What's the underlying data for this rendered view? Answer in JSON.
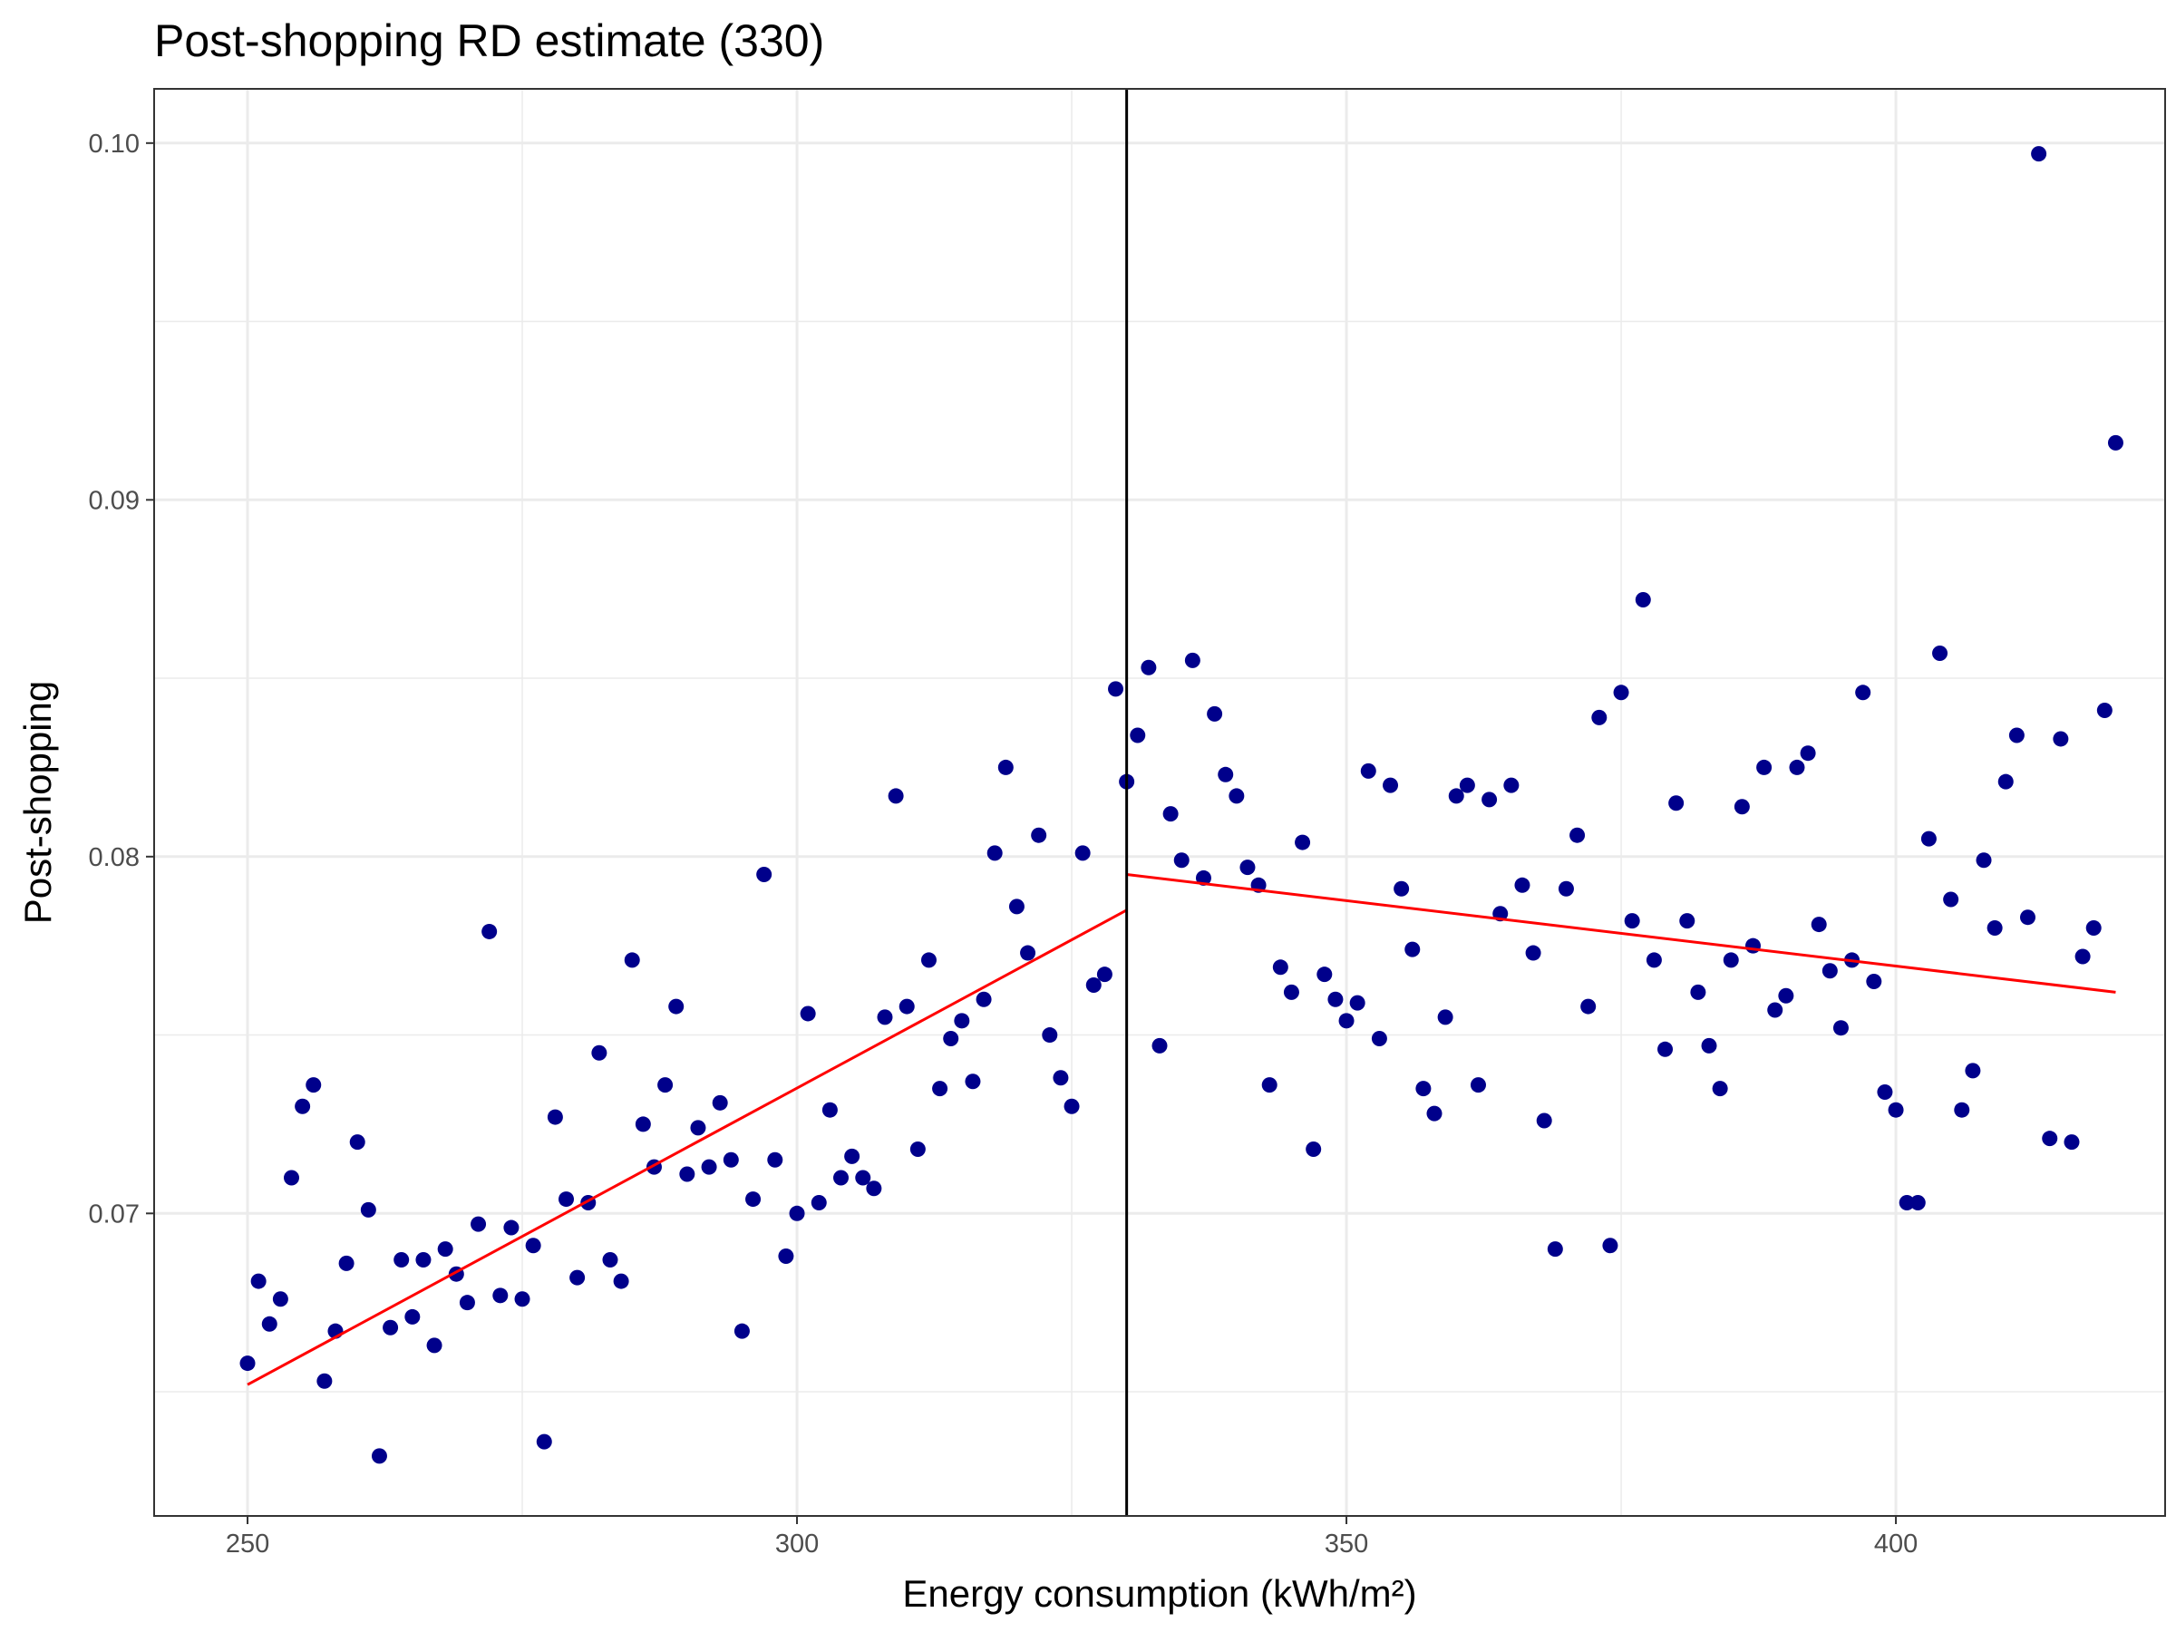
{
  "chart_data": {
    "type": "scatter",
    "title": "Post-shopping RD estimate (330)",
    "xlabel": "Energy consumption (kWh/m²)",
    "ylabel": "Post-shopping",
    "xlim": [
      241.5,
      424.5
    ],
    "ylim": [
      0.06152,
      0.10152
    ],
    "x_ticks": [
      250,
      300,
      350,
      400
    ],
    "x_tick_labels": [
      "250",
      "300",
      "350",
      "400"
    ],
    "y_ticks": [
      0.07,
      0.08,
      0.09,
      0.1
    ],
    "y_tick_labels": [
      "0.07",
      "0.08",
      "0.09",
      "0.10"
    ],
    "grid": true,
    "cutoff": 330,
    "colors": {
      "points": "#00008b",
      "fit": "#ff0000",
      "cutoff": "#000000",
      "grid": "#ebebeb",
      "panel_border": "#333333"
    },
    "fit_lines": [
      {
        "x": [
          250,
          330
        ],
        "y": [
          0.0652,
          0.0785
        ]
      },
      {
        "x": [
          330,
          420
        ],
        "y": [
          0.0795,
          0.0762
        ]
      }
    ],
    "points": [
      [
        250,
        0.0658
      ],
      [
        251,
        0.0681
      ],
      [
        252,
        0.0669
      ],
      [
        253,
        0.0676
      ],
      [
        254,
        0.071
      ],
      [
        255,
        0.073
      ],
      [
        256,
        0.0736
      ],
      [
        257,
        0.0653
      ],
      [
        258,
        0.0667
      ],
      [
        259,
        0.0686
      ],
      [
        260,
        0.072
      ],
      [
        261,
        0.0701
      ],
      [
        262,
        0.0632
      ],
      [
        263,
        0.0668
      ],
      [
        264,
        0.0687
      ],
      [
        265,
        0.0671
      ],
      [
        266,
        0.0687
      ],
      [
        267,
        0.0663
      ],
      [
        268,
        0.069
      ],
      [
        269,
        0.0683
      ],
      [
        270,
        0.0675
      ],
      [
        271,
        0.0697
      ],
      [
        272,
        0.0779
      ],
      [
        273,
        0.0677
      ],
      [
        274,
        0.0696
      ],
      [
        275,
        0.0676
      ],
      [
        276,
        0.0691
      ],
      [
        277,
        0.0636
      ],
      [
        278,
        0.0727
      ],
      [
        279,
        0.0704
      ],
      [
        280,
        0.0682
      ],
      [
        281,
        0.0703
      ],
      [
        282,
        0.0745
      ],
      [
        283,
        0.0687
      ],
      [
        284,
        0.0681
      ],
      [
        285,
        0.0771
      ],
      [
        286,
        0.0725
      ],
      [
        287,
        0.0713
      ],
      [
        288,
        0.0736
      ],
      [
        289,
        0.0758
      ],
      [
        290,
        0.0711
      ],
      [
        291,
        0.0724
      ],
      [
        292,
        0.0713
      ],
      [
        293,
        0.0731
      ],
      [
        294,
        0.0715
      ],
      [
        295,
        0.0667
      ],
      [
        296,
        0.0704
      ],
      [
        297,
        0.0795
      ],
      [
        298,
        0.0715
      ],
      [
        299,
        0.0688
      ],
      [
        300,
        0.07
      ],
      [
        301,
        0.0756
      ],
      [
        302,
        0.0703
      ],
      [
        303,
        0.0729
      ],
      [
        304,
        0.071
      ],
      [
        305,
        0.0716
      ],
      [
        306,
        0.071
      ],
      [
        307,
        0.0707
      ],
      [
        308,
        0.0755
      ],
      [
        309,
        0.0817
      ],
      [
        310,
        0.0758
      ],
      [
        311,
        0.0718
      ],
      [
        312,
        0.0771
      ],
      [
        313,
        0.0735
      ],
      [
        314,
        0.0749
      ],
      [
        315,
        0.0754
      ],
      [
        316,
        0.0737
      ],
      [
        317,
        0.076
      ],
      [
        318,
        0.0801
      ],
      [
        319,
        0.0825
      ],
      [
        320,
        0.0786
      ],
      [
        321,
        0.0773
      ],
      [
        322,
        0.0806
      ],
      [
        323,
        0.075
      ],
      [
        324,
        0.0738
      ],
      [
        325,
        0.073
      ],
      [
        326,
        0.0801
      ],
      [
        327,
        0.0764
      ],
      [
        328,
        0.0767
      ],
      [
        329,
        0.0847
      ],
      [
        330,
        0.0821
      ],
      [
        331,
        0.0834
      ],
      [
        332,
        0.0853
      ],
      [
        333,
        0.0747
      ],
      [
        334,
        0.0812
      ],
      [
        335,
        0.0799
      ],
      [
        336,
        0.0855
      ],
      [
        337,
        0.0794
      ],
      [
        338,
        0.084
      ],
      [
        339,
        0.0823
      ],
      [
        340,
        0.0817
      ],
      [
        341,
        0.0797
      ],
      [
        342,
        0.0792
      ],
      [
        343,
        0.0736
      ],
      [
        344,
        0.0769
      ],
      [
        345,
        0.0762
      ],
      [
        346,
        0.0804
      ],
      [
        347,
        0.0718
      ],
      [
        348,
        0.0767
      ],
      [
        349,
        0.076
      ],
      [
        350,
        0.0754
      ],
      [
        351,
        0.0759
      ],
      [
        352,
        0.0824
      ],
      [
        353,
        0.0749
      ],
      [
        354,
        0.082
      ],
      [
        355,
        0.0791
      ],
      [
        356,
        0.0774
      ],
      [
        357,
        0.0735
      ],
      [
        358,
        0.0728
      ],
      [
        359,
        0.0755
      ],
      [
        360,
        0.0817
      ],
      [
        361,
        0.082
      ],
      [
        362,
        0.0736
      ],
      [
        363,
        0.0816
      ],
      [
        364,
        0.0784
      ],
      [
        365,
        0.082
      ],
      [
        366,
        0.0792
      ],
      [
        367,
        0.0773
      ],
      [
        368,
        0.0726
      ],
      [
        369,
        0.069
      ],
      [
        370,
        0.0791
      ],
      [
        371,
        0.0806
      ],
      [
        372,
        0.0758
      ],
      [
        373,
        0.0839
      ],
      [
        374,
        0.0691
      ],
      [
        375,
        0.0846
      ],
      [
        376,
        0.0782
      ],
      [
        377,
        0.0872
      ],
      [
        378,
        0.0771
      ],
      [
        379,
        0.0746
      ],
      [
        380,
        0.0815
      ],
      [
        381,
        0.0782
      ],
      [
        382,
        0.0762
      ],
      [
        383,
        0.0747
      ],
      [
        384,
        0.0735
      ],
      [
        385,
        0.0771
      ],
      [
        386,
        0.0814
      ],
      [
        387,
        0.0775
      ],
      [
        388,
        0.0825
      ],
      [
        389,
        0.0757
      ],
      [
        390,
        0.0761
      ],
      [
        391,
        0.0825
      ],
      [
        392,
        0.0829
      ],
      [
        393,
        0.0781
      ],
      [
        394,
        0.0768
      ],
      [
        395,
        0.0752
      ],
      [
        396,
        0.0771
      ],
      [
        397,
        0.0846
      ],
      [
        398,
        0.0765
      ],
      [
        399,
        0.0734
      ],
      [
        400,
        0.0729
      ],
      [
        401,
        0.0703
      ],
      [
        402,
        0.0703
      ],
      [
        403,
        0.0805
      ],
      [
        404,
        0.0857
      ],
      [
        405,
        0.0788
      ],
      [
        406,
        0.0729
      ],
      [
        407,
        0.074
      ],
      [
        408,
        0.0799
      ],
      [
        409,
        0.078
      ],
      [
        410,
        0.0821
      ],
      [
        411,
        0.0834
      ],
      [
        412,
        0.0783
      ],
      [
        413,
        0.0997
      ],
      [
        414,
        0.0721
      ],
      [
        415,
        0.0833
      ],
      [
        416,
        0.072
      ],
      [
        417,
        0.0772
      ],
      [
        418,
        0.078
      ],
      [
        419,
        0.0841
      ],
      [
        420,
        0.0916
      ]
    ]
  }
}
